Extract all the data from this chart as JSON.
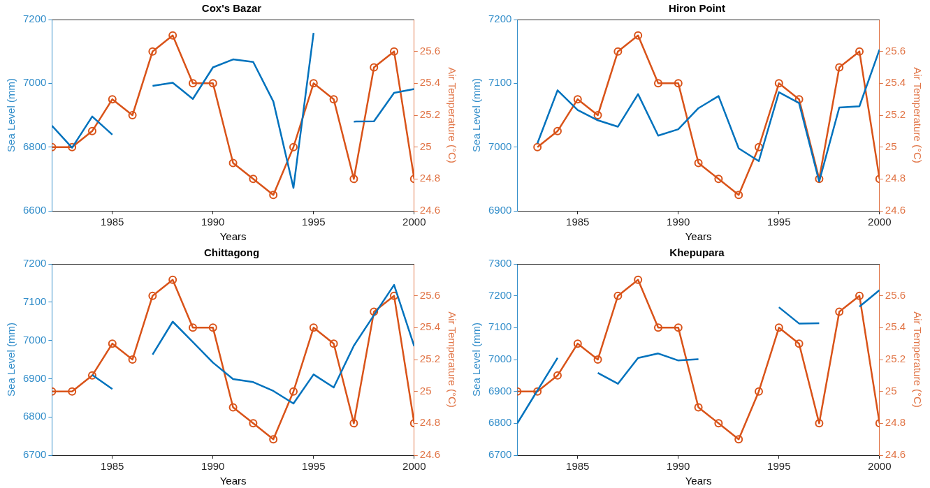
{
  "chart_data": [
    {
      "type": "line",
      "title": "Cox's Bazar",
      "xlabel": "Years",
      "ylabel": "Sea Level (mm)",
      "y2label": "Air Temperature (°C)",
      "x": [
        1982,
        1983,
        1984,
        1985,
        1986,
        1987,
        1988,
        1989,
        1990,
        1991,
        1992,
        1993,
        1994,
        1995,
        1996,
        1997,
        1998,
        1999,
        2000
      ],
      "xlim": [
        1982,
        2000
      ],
      "xticks": [
        1985,
        1990,
        1995,
        2000
      ],
      "ylim": [
        6600,
        7200
      ],
      "yticks": [
        6600,
        6800,
        7000,
        7200
      ],
      "y2lim": [
        24.6,
        25.8
      ],
      "y2ticks": [
        24.6,
        24.8,
        25,
        25.2,
        25.4,
        25.6
      ],
      "grid": false,
      "legend": false,
      "series": [
        {
          "color": "#0072bd",
          "marker": "none",
          "values": [
            6867,
            6798,
            6896,
            6839,
            null,
            6992,
            7002,
            6951,
            7050,
            7075,
            7067,
            6943,
            6672,
            7158,
            null,
            6880,
            6881,
            6970,
            6982
          ]
        },
        {
          "color": "#d95319",
          "axis": "y2",
          "marker": "circle",
          "values": [
            25.0,
            25.0,
            25.1,
            25.3,
            25.2,
            25.6,
            25.7,
            25.4,
            25.4,
            24.9,
            24.8,
            24.7,
            25.0,
            25.4,
            25.3,
            24.8,
            25.5,
            25.6,
            24.8
          ]
        }
      ]
    },
    {
      "type": "line",
      "title": "Hiron Point",
      "xlabel": "Years",
      "ylabel": "Sea Level (mm)",
      "y2label": "Air Temperature (°C)",
      "x": [
        1983,
        1984,
        1985,
        1986,
        1987,
        1988,
        1989,
        1990,
        1991,
        1992,
        1993,
        1994,
        1995,
        1996,
        1997,
        1998,
        1999,
        2000
      ],
      "xlim": [
        1982,
        2000
      ],
      "xticks": [
        1985,
        1990,
        1995,
        2000
      ],
      "ylim": [
        6900,
        7200
      ],
      "yticks": [
        6900,
        7000,
        7100,
        7200
      ],
      "y2lim": [
        24.6,
        25.8
      ],
      "y2ticks": [
        24.6,
        24.8,
        25,
        25.2,
        25.4,
        25.6
      ],
      "grid": false,
      "legend": false,
      "series": [
        {
          "color": "#0072bd",
          "marker": "none",
          "values": [
            7006,
            7089,
            7058,
            7042,
            7032,
            7083,
            7018,
            7028,
            7061,
            7080,
            6998,
            6978,
            7086,
            7069,
            6946,
            7062,
            7064,
            7153
          ]
        },
        {
          "color": "#d95319",
          "axis": "y2",
          "marker": "circle",
          "values": [
            25.0,
            25.1,
            25.3,
            25.2,
            25.6,
            25.7,
            25.4,
            25.4,
            24.9,
            24.8,
            24.7,
            25.0,
            25.4,
            25.3,
            24.8,
            25.5,
            25.6,
            24.8
          ]
        }
      ]
    },
    {
      "type": "line",
      "title": "Chittagong",
      "xlabel": "Years",
      "ylabel": "Sea Level (mm)",
      "y2label": "Air Temperature (°C)",
      "x": [
        1982,
        1983,
        1984,
        1985,
        1986,
        1987,
        1988,
        1989,
        1990,
        1991,
        1992,
        1993,
        1994,
        1995,
        1996,
        1997,
        1998,
        1999,
        2000
      ],
      "xlim": [
        1982,
        2000
      ],
      "xticks": [
        1985,
        1990,
        1995,
        2000
      ],
      "ylim": [
        6700,
        7200
      ],
      "yticks": [
        6700,
        6800,
        6900,
        7000,
        7100,
        7200
      ],
      "y2lim": [
        24.6,
        25.8
      ],
      "y2ticks": [
        24.6,
        24.8,
        25,
        25.2,
        25.4,
        25.6
      ],
      "grid": false,
      "legend": false,
      "series": [
        {
          "color": "#0072bd",
          "marker": "none",
          "values": [
            null,
            null,
            6910,
            6873,
            null,
            6963,
            7049,
            6996,
            6942,
            6899,
            6891,
            6868,
            6835,
            6911,
            6877,
            6986,
            7066,
            7145,
            6985
          ]
        },
        {
          "color": "#d95319",
          "axis": "y2",
          "marker": "circle",
          "values": [
            25.0,
            25.0,
            25.1,
            25.3,
            25.2,
            25.6,
            25.7,
            25.4,
            25.4,
            24.9,
            24.8,
            24.7,
            25.0,
            25.4,
            25.3,
            24.8,
            25.5,
            25.6,
            24.8
          ]
        }
      ]
    },
    {
      "type": "line",
      "title": "Khepupara",
      "xlabel": "Years",
      "ylabel": "Sea Level (mm)",
      "y2label": "Air Temperature (°C)",
      "x": [
        1982,
        1983,
        1984,
        1985,
        1986,
        1987,
        1988,
        1989,
        1990,
        1991,
        1992,
        1993,
        1994,
        1995,
        1996,
        1997,
        1998,
        1999,
        2000
      ],
      "xlim": [
        1982,
        2000
      ],
      "xticks": [
        1985,
        1990,
        1995,
        2000
      ],
      "ylim": [
        6700,
        7300
      ],
      "yticks": [
        6700,
        6800,
        6900,
        7000,
        7100,
        7200,
        7300
      ],
      "y2lim": [
        24.6,
        25.8
      ],
      "y2ticks": [
        24.6,
        24.8,
        25,
        25.2,
        25.4,
        25.6
      ],
      "grid": false,
      "legend": false,
      "series": [
        {
          "color": "#0072bd",
          "marker": "none",
          "values": [
            6800,
            6903,
            7005,
            null,
            6958,
            6924,
            7005,
            7019,
            6997,
            7001,
            null,
            null,
            null,
            7164,
            7113,
            7114,
            null,
            7166,
            7218
          ]
        },
        {
          "color": "#d95319",
          "axis": "y2",
          "marker": "circle",
          "values": [
            25.0,
            25.0,
            25.1,
            25.3,
            25.2,
            25.6,
            25.7,
            25.4,
            25.4,
            24.9,
            24.8,
            24.7,
            25.0,
            25.4,
            25.3,
            24.8,
            25.5,
            25.6,
            24.8
          ]
        }
      ]
    }
  ]
}
